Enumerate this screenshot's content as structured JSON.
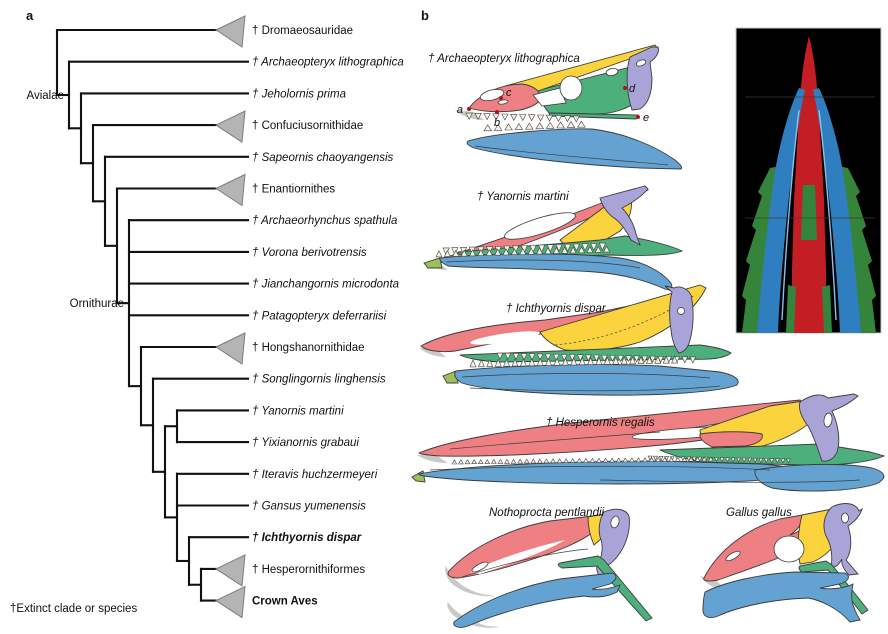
{
  "figure": {
    "panel_a_letter": "a",
    "panel_b_letter": "b",
    "footnote": "†Extinct clade or species"
  },
  "colors": {
    "premaxilla_red": "#ee7f82",
    "maxilla_yellow": "#fbd33c",
    "jugal_green": "#4db07c",
    "quadrate_purple": "#a8a4d7",
    "mandible_blue": "#63a2d1",
    "predentary_olive": "#9dc05a",
    "triangle_fill": "#b4b4b4",
    "triangle_stroke": "#7c7c7c",
    "branch_black": "#111111",
    "annotation_dot_red": "#b11117",
    "ct_red": "#c41e25",
    "ct_blue": "#2f7fc0",
    "ct_green": "#35843b"
  },
  "tree": {
    "root": {
      "children": [
        {
          "label": "† Dromaeosauridae",
          "triangle": true
        },
        {
          "clade": "Avialae",
          "children": [
            {
              "label": "† Archaeopteryx lithographica",
              "italic": true
            },
            {
              "children": [
                {
                  "label": "† Jeholornis prima",
                  "italic": true
                },
                {
                  "children": [
                    {
                      "label": "† Confuciusornithidae",
                      "triangle": true
                    },
                    {
                      "children": [
                        {
                          "label": "† Sapeornis chaoyangensis",
                          "italic": true
                        },
                        {
                          "children": [
                            {
                              "label": "† Enantiornithes",
                              "triangle": true
                            },
                            {
                              "clade": "Ornithurae",
                              "children": [
                                {
                                  "label": "† Archaeorhynchus spathula",
                                  "italic": true
                                },
                                {
                                  "label": "† Vorona berivotrensis",
                                  "italic": true
                                },
                                {
                                  "label": "† Jianchangornis microdonta",
                                  "italic": true
                                },
                                {
                                  "label": "† Patagopteryx deferrariisi",
                                  "italic": true
                                },
                                {
                                  "children": [
                                    {
                                      "label": "† Hongshanornithidae",
                                      "triangle": true
                                    },
                                    {
                                      "children": [
                                        {
                                          "label": "† Songlingornis linghensis",
                                          "italic": true
                                        },
                                        {
                                          "children": [
                                            {
                                              "children": [
                                                {
                                                  "label": "† Yanornis martini",
                                                  "italic": true
                                                },
                                                {
                                                  "label": "† Yixianornis grabaui",
                                                  "italic": true
                                                }
                                              ]
                                            },
                                            {
                                              "children": [
                                                {
                                                  "label": "† Iteravis huchzermeyeri",
                                                  "italic": true
                                                },
                                                {
                                                  "label": "† Gansus yumenensis",
                                                  "italic": true
                                                },
                                                {
                                                  "children": [
                                                    {
                                                      "label": "† Ichthyornis dispar",
                                                      "italic": true,
                                                      "bold": true
                                                    },
                                                    {
                                                      "children": [
                                                        {
                                                          "label": "† Hesperornithiformes",
                                                          "triangle": true
                                                        },
                                                        {
                                                          "label": "Crown Aves",
                                                          "bold": true,
                                                          "triangle": true
                                                        }
                                                      ]
                                                    }
                                                  ]
                                                }
                                              ]
                                            }
                                          ]
                                        }
                                      ]
                                    }
                                  ]
                                }
                              ]
                            }
                          ]
                        }
                      ]
                    }
                  ]
                }
              ]
            }
          ]
        }
      ]
    }
  },
  "skulls": [
    {
      "id": "archaeopteryx",
      "label": "† Archaeopteryx lithographica"
    },
    {
      "id": "yanornis",
      "label": "† Yanornis martini"
    },
    {
      "id": "ichthyornis",
      "label": "† Ichthyornis dispar"
    },
    {
      "id": "hesperornis",
      "label": "† Hesperornis regalis"
    },
    {
      "id": "nothoprocta",
      "label": "Nothoprocta pentlandii"
    },
    {
      "id": "gallus",
      "label": "Gallus gallus"
    }
  ],
  "annotations": [
    "a",
    "b",
    "c",
    "d",
    "e"
  ]
}
